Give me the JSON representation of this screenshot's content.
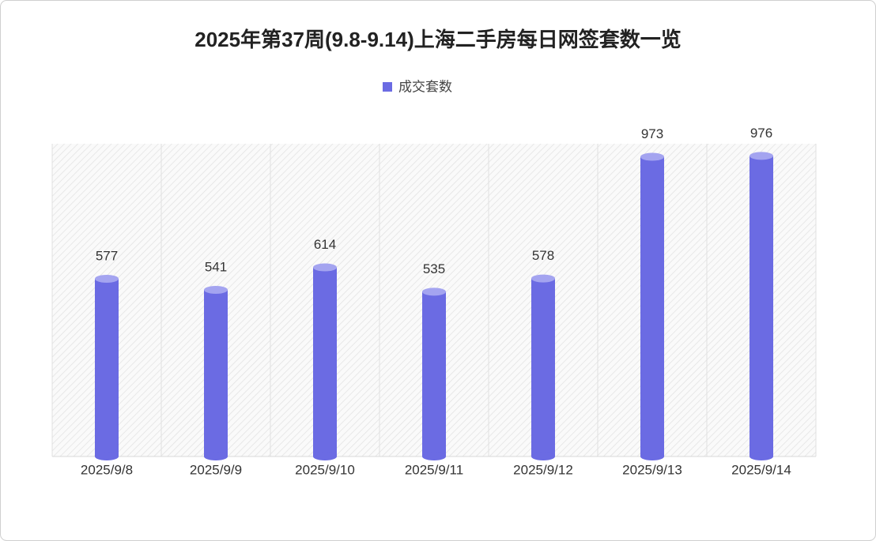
{
  "chart_data": {
    "type": "bar",
    "title": "2025年第37周(9.8-9.14)上海二手房每日网签套数一览",
    "categories": [
      "2025/9/8",
      "2025/9/9",
      "2025/9/10",
      "2025/9/11",
      "2025/9/12",
      "2025/9/13",
      "2025/9/14"
    ],
    "series": [
      {
        "name": "成交套数",
        "color": "#6b6be3",
        "values": [
          577,
          541,
          614,
          535,
          578,
          973,
          976
        ]
      }
    ],
    "ylim": [
      0,
      1000
    ]
  }
}
